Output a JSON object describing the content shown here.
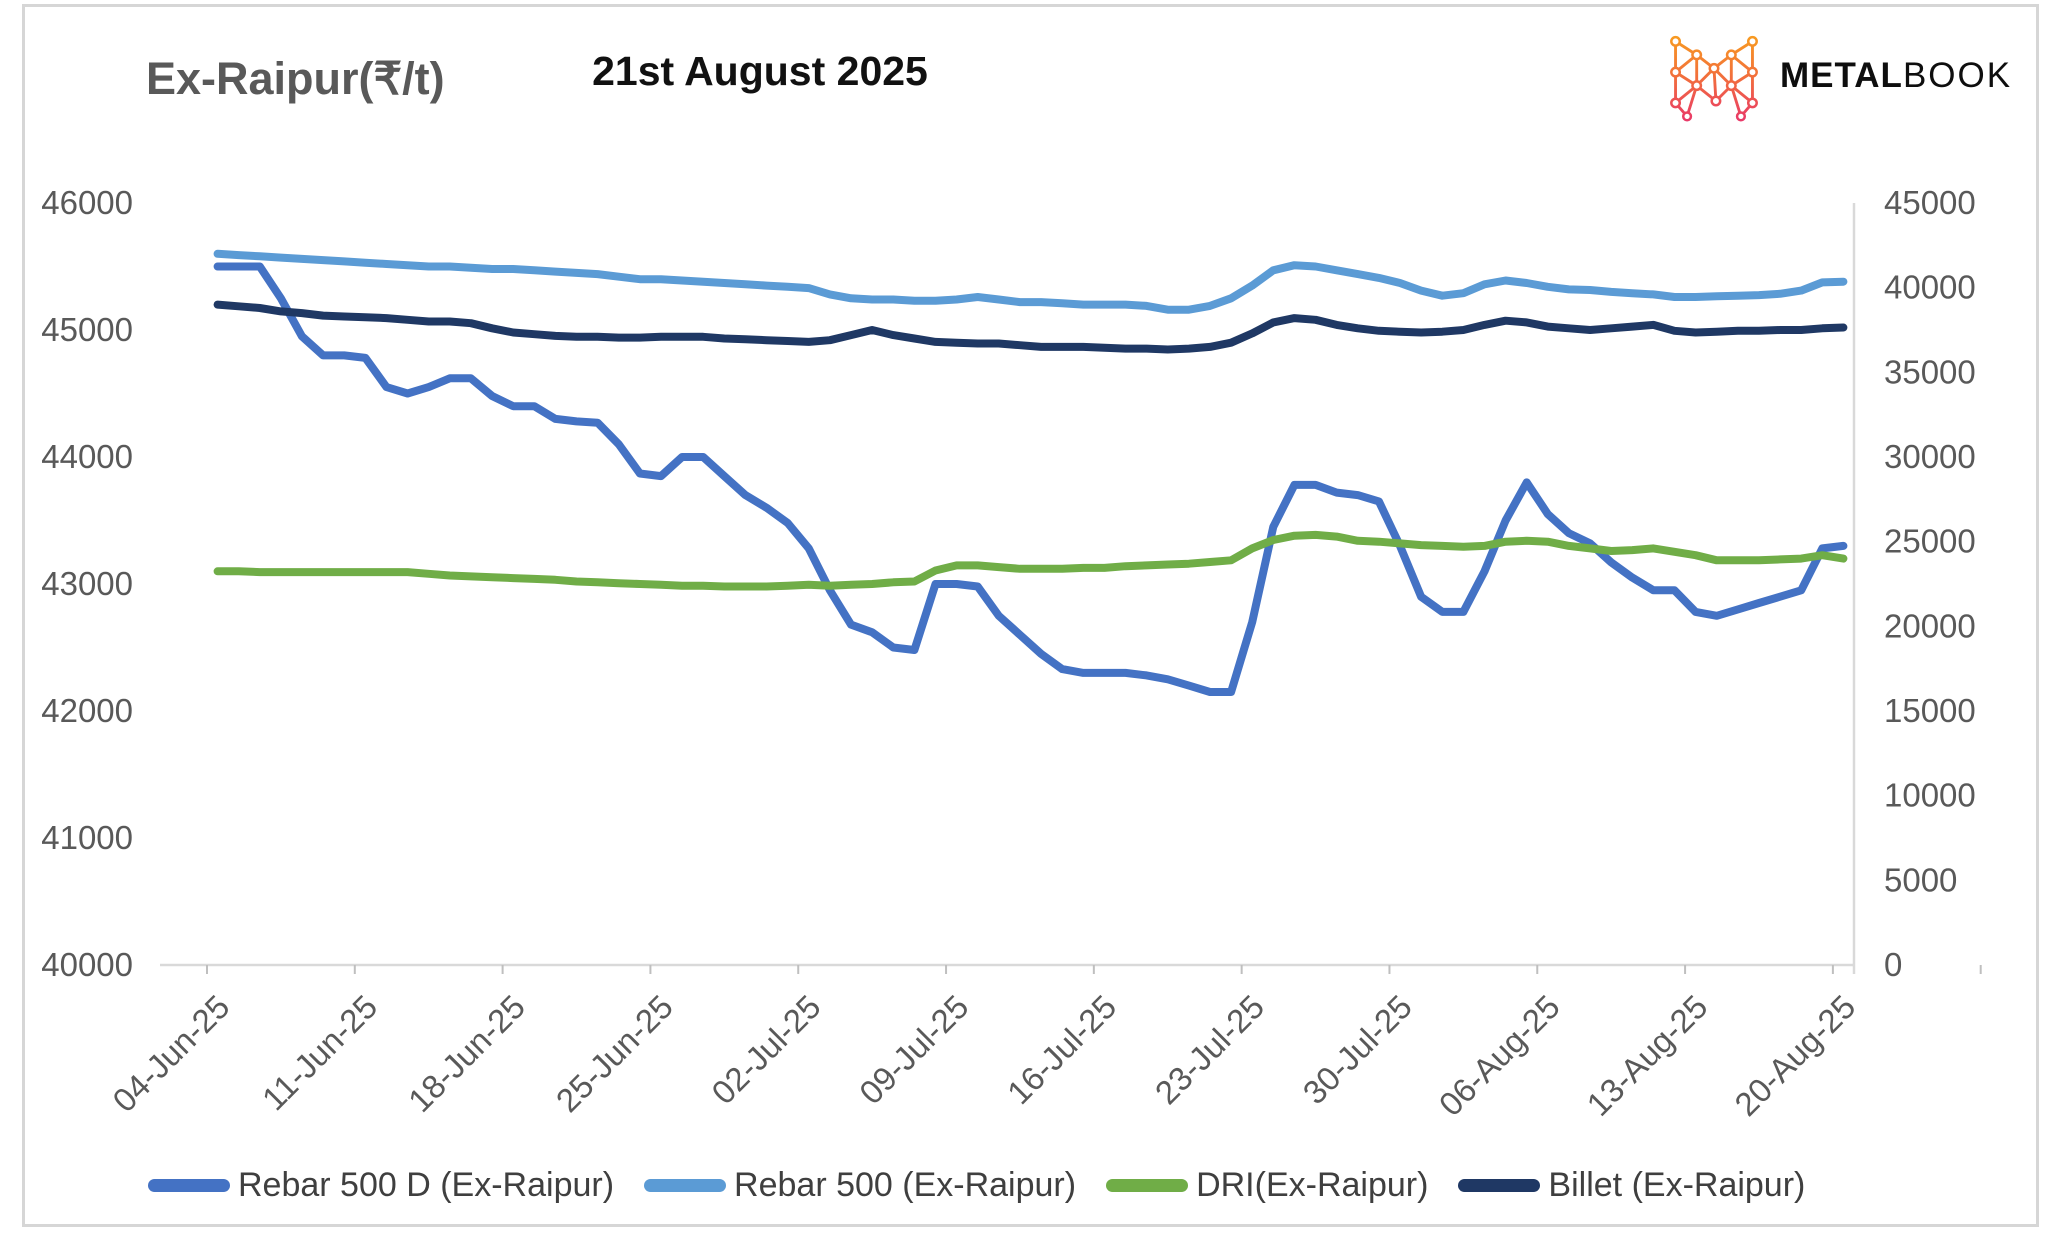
{
  "header": {
    "title": "Ex-Raipur(₹/t)",
    "date_title": "21st August 2025",
    "brand": {
      "bold": "METAL",
      "light": "BOOK",
      "icon": "metalbook-network-m-icon",
      "icon_gradient": [
        "#F9A61A",
        "#F2703B",
        "#E8336E"
      ]
    }
  },
  "chart_data": {
    "type": "line",
    "title": "Ex-Raipur(₹/t)",
    "subtitle": "21st August 2025",
    "grid": false,
    "legend_position": "bottom",
    "x_unit": "daily",
    "n_points": 78,
    "x_tick_every_n_points": 7,
    "x_tick_labels": [
      "04-Jun-25",
      "11-Jun-25",
      "18-Jun-25",
      "25-Jun-25",
      "02-Jul-25",
      "09-Jul-25",
      "16-Jul-25",
      "23-Jul-25",
      "30-Jul-25",
      "06-Aug-25",
      "13-Aug-25",
      "20-Aug-25"
    ],
    "left_axis": {
      "min": 40000,
      "max": 46000,
      "step": 1000,
      "ticks": [
        46000,
        45000,
        44000,
        43000,
        42000,
        41000,
        40000
      ]
    },
    "right_axis": {
      "min": 0,
      "max": 45000,
      "step": 5000,
      "ticks": [
        45000,
        40000,
        35000,
        30000,
        25000,
        20000,
        15000,
        10000,
        5000,
        0
      ]
    },
    "colors": {
      "axis_text": "#595959",
      "axis_line": "#d9d9d9",
      "tick": "#bfbfbf"
    },
    "series": [
      {
        "name": "Rebar 500 D (Ex-Raipur)",
        "color": "#4472C4",
        "axis": "left",
        "values": [
          45500,
          45500,
          45500,
          45250,
          44950,
          44800,
          44800,
          44780,
          44550,
          44500,
          44550,
          44620,
          44620,
          44480,
          44400,
          44400,
          44300,
          44280,
          44270,
          44100,
          43870,
          43850,
          44000,
          44000,
          43850,
          43700,
          43600,
          43480,
          43280,
          42950,
          42680,
          42620,
          42500,
          42480,
          43000,
          43000,
          42980,
          42750,
          42600,
          42450,
          42330,
          42300,
          42300,
          42300,
          42280,
          42250,
          42200,
          42150,
          42150,
          42700,
          43450,
          43780,
          43780,
          43720,
          43700,
          43650,
          43300,
          42900,
          42780,
          42780,
          43100,
          43500,
          43800,
          43550,
          43400,
          43320,
          43170,
          43050,
          42950,
          42950,
          42780,
          42750,
          42800,
          42850,
          42900,
          42950,
          43280,
          43300
        ]
      },
      {
        "name": "Rebar 500 (Ex-Raipur)",
        "color": "#5B9BD5",
        "axis": "left",
        "values": [
          45600,
          45590,
          45580,
          45570,
          45560,
          45550,
          45540,
          45530,
          45520,
          45510,
          45500,
          45500,
          45490,
          45480,
          45480,
          45470,
          45460,
          45450,
          45440,
          45420,
          45400,
          45400,
          45390,
          45380,
          45370,
          45360,
          45350,
          45340,
          45330,
          45280,
          45250,
          45240,
          45240,
          45230,
          45230,
          45240,
          45260,
          45240,
          45220,
          45220,
          45210,
          45200,
          45200,
          45200,
          45190,
          45160,
          45160,
          45190,
          45250,
          45350,
          45470,
          45510,
          45500,
          45470,
          45440,
          45410,
          45370,
          45310,
          45270,
          45290,
          45360,
          45390,
          45370,
          45340,
          45320,
          45315,
          45300,
          45290,
          45280,
          45260,
          45260,
          45265,
          45270,
          45275,
          45285,
          45310,
          45375,
          45380
        ]
      },
      {
        "name": "DRI(Ex-Raipur)",
        "color": "#70AD47",
        "axis": "right",
        "values": [
          23250,
          23250,
          23200,
          23200,
          23200,
          23200,
          23200,
          23200,
          23200,
          23200,
          23100,
          23000,
          22950,
          22900,
          22850,
          22800,
          22750,
          22650,
          22600,
          22550,
          22500,
          22450,
          22400,
          22400,
          22350,
          22350,
          22350,
          22400,
          22450,
          22400,
          22450,
          22500,
          22600,
          22650,
          23300,
          23600,
          23600,
          23500,
          23400,
          23400,
          23400,
          23450,
          23450,
          23550,
          23600,
          23650,
          23700,
          23800,
          23900,
          24600,
          25100,
          25350,
          25400,
          25300,
          25050,
          25000,
          24900,
          24800,
          24750,
          24700,
          24750,
          25000,
          25050,
          25000,
          24750,
          24600,
          24450,
          24500,
          24600,
          24400,
          24200,
          23900,
          23900,
          23900,
          23950,
          24000,
          24200,
          24000
        ]
      },
      {
        "name": "Billet (Ex-Raipur)",
        "color": "#1F3864",
        "axis": "right",
        "values": [
          39000,
          38900,
          38800,
          38600,
          38500,
          38350,
          38300,
          38250,
          38200,
          38100,
          38000,
          38000,
          37900,
          37600,
          37350,
          37250,
          37150,
          37100,
          37100,
          37050,
          37050,
          37100,
          37100,
          37100,
          37000,
          36950,
          36900,
          36850,
          36800,
          36900,
          37200,
          37500,
          37200,
          37000,
          36800,
          36750,
          36700,
          36700,
          36600,
          36500,
          36500,
          36500,
          36450,
          36400,
          36400,
          36350,
          36400,
          36500,
          36750,
          37300,
          37950,
          38200,
          38100,
          37800,
          37600,
          37450,
          37400,
          37350,
          37400,
          37500,
          37800,
          38050,
          37950,
          37700,
          37600,
          37500,
          37600,
          37700,
          37800,
          37450,
          37350,
          37400,
          37450,
          37450,
          37500,
          37500,
          37600,
          37650
        ]
      }
    ]
  }
}
